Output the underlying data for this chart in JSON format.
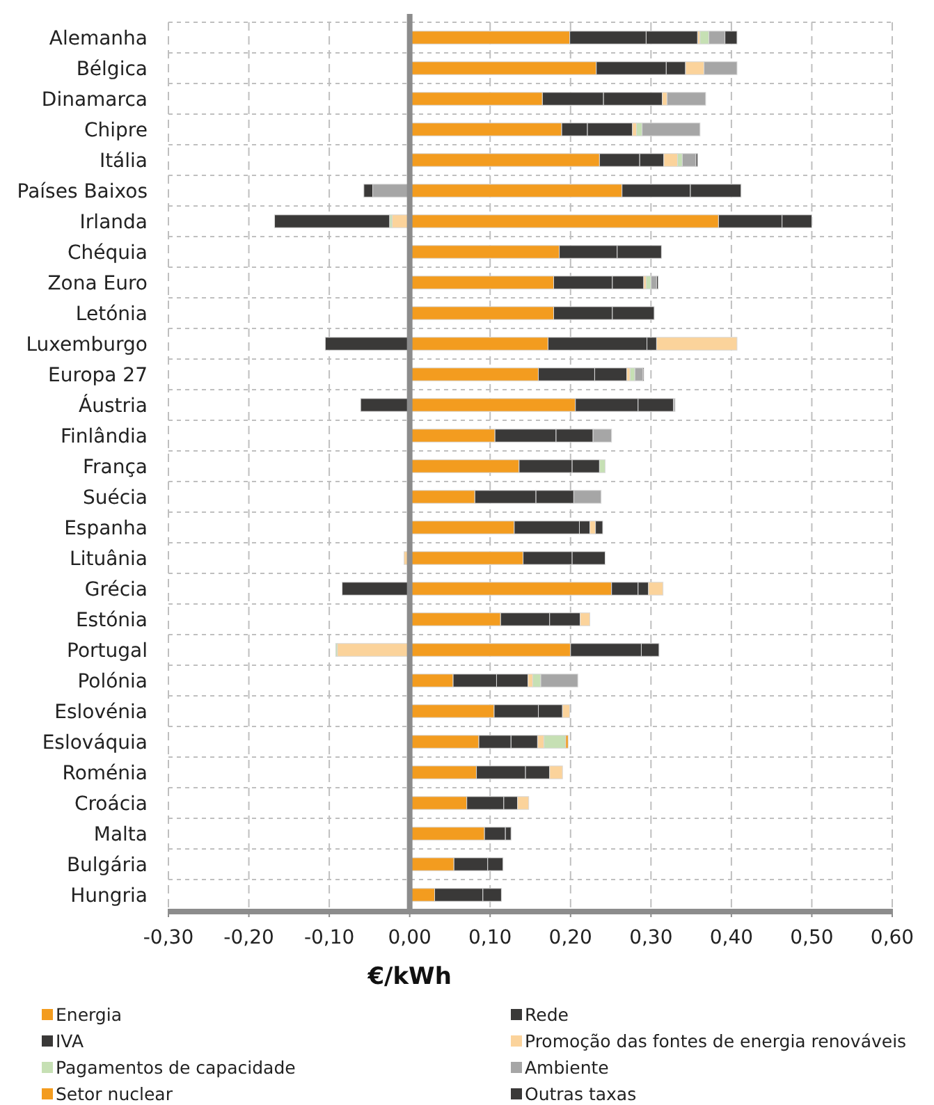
{
  "chart_data": {
    "type": "bar",
    "orientation": "horizontal",
    "stacked": true,
    "xlabel": "€/kWh",
    "categories": [
      "Alemanha",
      "Bélgica",
      "Dinamarca",
      "Chipre",
      "Itália",
      "Países Baixos",
      "Irlanda",
      "Chéquia",
      "Zona Euro",
      "Letónia",
      "Luxemburgo",
      "Europa 27",
      "Áustria",
      "Finlândia",
      "França",
      "Suécia",
      "Espanha",
      "Lituânia",
      "Grécia",
      "Estónia",
      "Portugal",
      "Polónia",
      "Eslovénia",
      "Eslováquia",
      "Roménia",
      "Croácia",
      "Malta",
      "Bulgária",
      "Hungria"
    ],
    "series": [
      {
        "name": "Energia",
        "color": "#f39c1f",
        "values": [
          0.199,
          0.232,
          0.165,
          0.189,
          0.236,
          0.264,
          0.384,
          0.186,
          0.179,
          0.179,
          0.172,
          0.16,
          0.206,
          0.106,
          0.136,
          0.081,
          0.13,
          0.141,
          0.251,
          0.113,
          0.2,
          0.054,
          0.105,
          0.086,
          0.083,
          0.071,
          0.093,
          0.055,
          0.031
        ]
      },
      {
        "name": "Rede",
        "color": "#3a3938",
        "values": [
          0.095,
          0.087,
          0.076,
          0.032,
          0.05,
          0.085,
          0.079,
          0.072,
          0.073,
          0.073,
          0.123,
          0.07,
          0.078,
          0.076,
          0.066,
          0.076,
          0.081,
          0.061,
          0.033,
          0.061,
          0.088,
          0.054,
          0.055,
          0.04,
          0.061,
          0.046,
          0.026,
          0.042,
          0.06
        ]
      },
      {
        "name": "IVA",
        "color": "#3a3938",
        "values": [
          0.064,
          0.024,
          0.073,
          0.056,
          0.03,
          0.063,
          0.037,
          0.055,
          0.039,
          0.052,
          0.012,
          0.04,
          0.044,
          0.046,
          0.034,
          0.047,
          0.013,
          0.041,
          0.013,
          0.038,
          0.022,
          0.039,
          0.03,
          0.033,
          0.03,
          0.017,
          0.007,
          0.019,
          0.023
        ]
      },
      {
        "name": "Promoção das fontes de energia renováveis",
        "color": "#fbd39b",
        "values": [
          0.003,
          0.023,
          0.006,
          0.005,
          0.017,
          null,
          -0.022,
          null,
          0.003,
          null,
          0.1,
          0.004,
          null,
          null,
          null,
          null,
          0.007,
          -0.007,
          0.018,
          0.012,
          -0.09,
          0.006,
          0.009,
          0.008,
          0.016,
          0.014,
          null,
          null,
          null
        ]
      },
      {
        "name": "Pagamentos de capacidade",
        "color": "#c6e0b4",
        "values": [
          0.011,
          null,
          null,
          0.007,
          0.006,
          null,
          -0.003,
          null,
          0.006,
          null,
          null,
          0.006,
          null,
          null,
          0.007,
          null,
          null,
          null,
          null,
          null,
          -0.002,
          0.01,
          null,
          0.027,
          null,
          null,
          null,
          null,
          null
        ]
      },
      {
        "name": "Ambiente",
        "color": "#a6a6a6",
        "values": [
          0.02,
          0.041,
          0.048,
          0.072,
          0.017,
          -0.046,
          null,
          null,
          0.007,
          null,
          null,
          0.01,
          0.002,
          0.023,
          null,
          0.034,
          null,
          null,
          null,
          null,
          null,
          0.046,
          null,
          null,
          null,
          null,
          null,
          null,
          null
        ]
      },
      {
        "name": "Setor nuclear",
        "color": "#f39c1f",
        "values": [
          null,
          null,
          null,
          null,
          null,
          null,
          null,
          null,
          null,
          null,
          null,
          null,
          null,
          null,
          null,
          null,
          null,
          null,
          null,
          null,
          null,
          null,
          null,
          0.003,
          null,
          null,
          null,
          null,
          null
        ]
      },
      {
        "name": "Outras taxas",
        "color": "#3a3938",
        "values": [
          0.015,
          null,
          null,
          null,
          0.002,
          -0.011,
          -0.143,
          null,
          0.002,
          null,
          -0.105,
          0.001,
          -0.061,
          null,
          null,
          null,
          0.009,
          null,
          -0.084,
          null,
          null,
          null,
          null,
          null,
          null,
          null,
          null,
          null,
          null
        ]
      }
    ],
    "xlim": [
      -0.3,
      0.6
    ],
    "xticks": [
      {
        "value": -0.3,
        "label": "-0,30"
      },
      {
        "value": -0.2,
        "label": "-0,20"
      },
      {
        "value": -0.1,
        "label": "-0,10"
      },
      {
        "value": 0,
        "label": "0,00"
      },
      {
        "value": 0.1,
        "label": "0,10"
      },
      {
        "value": 0.2,
        "label": "0,20"
      },
      {
        "value": 0.3,
        "label": "0,30"
      },
      {
        "value": 0.4,
        "label": "0,40"
      },
      {
        "value": 0.5,
        "label": "0,50"
      },
      {
        "value": 0.6,
        "label": "0,60"
      }
    ],
    "grid": true,
    "legend": "bottom"
  }
}
